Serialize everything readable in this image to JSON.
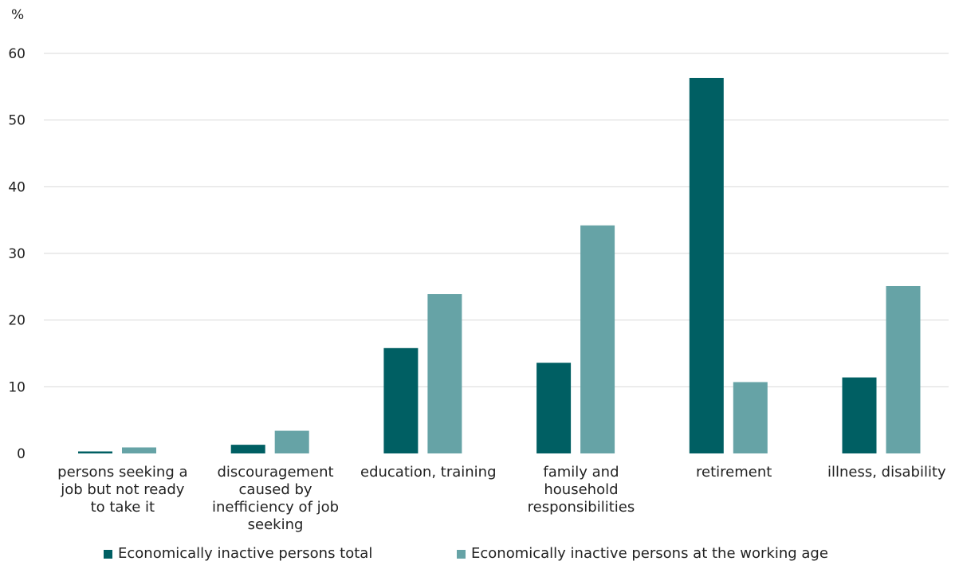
{
  "chart_data": {
    "type": "bar",
    "ylabel": "%",
    "ylim": [
      0,
      60
    ],
    "yticks": [
      0,
      10,
      20,
      30,
      40,
      50,
      60
    ],
    "grid": true,
    "legend_position": "bottom",
    "categories": [
      "persons seeking a job but not ready to take it",
      "discouragement caused by inefficiency of job seeking",
      "education, training",
      "family and household responsibilities",
      "retirement",
      "illness, disability"
    ],
    "category_lines": [
      [
        "persons seeking a",
        "job but not ready",
        "to take it"
      ],
      [
        "discouragement",
        "caused by",
        "inefficiency of job",
        "seeking"
      ],
      [
        "education, training"
      ],
      [
        "family and",
        "household",
        "responsibilities"
      ],
      [
        "retirement"
      ],
      [
        "illness, disability"
      ]
    ],
    "series": [
      {
        "name": "Economically inactive persons total",
        "color": "#005f63",
        "values": [
          0.3,
          1.3,
          15.8,
          13.6,
          56.3,
          11.4
        ]
      },
      {
        "name": "Economically inactive persons at the working age",
        "color": "#66a3a6",
        "values": [
          0.9,
          3.4,
          23.9,
          34.2,
          10.7,
          25.1
        ]
      }
    ]
  }
}
